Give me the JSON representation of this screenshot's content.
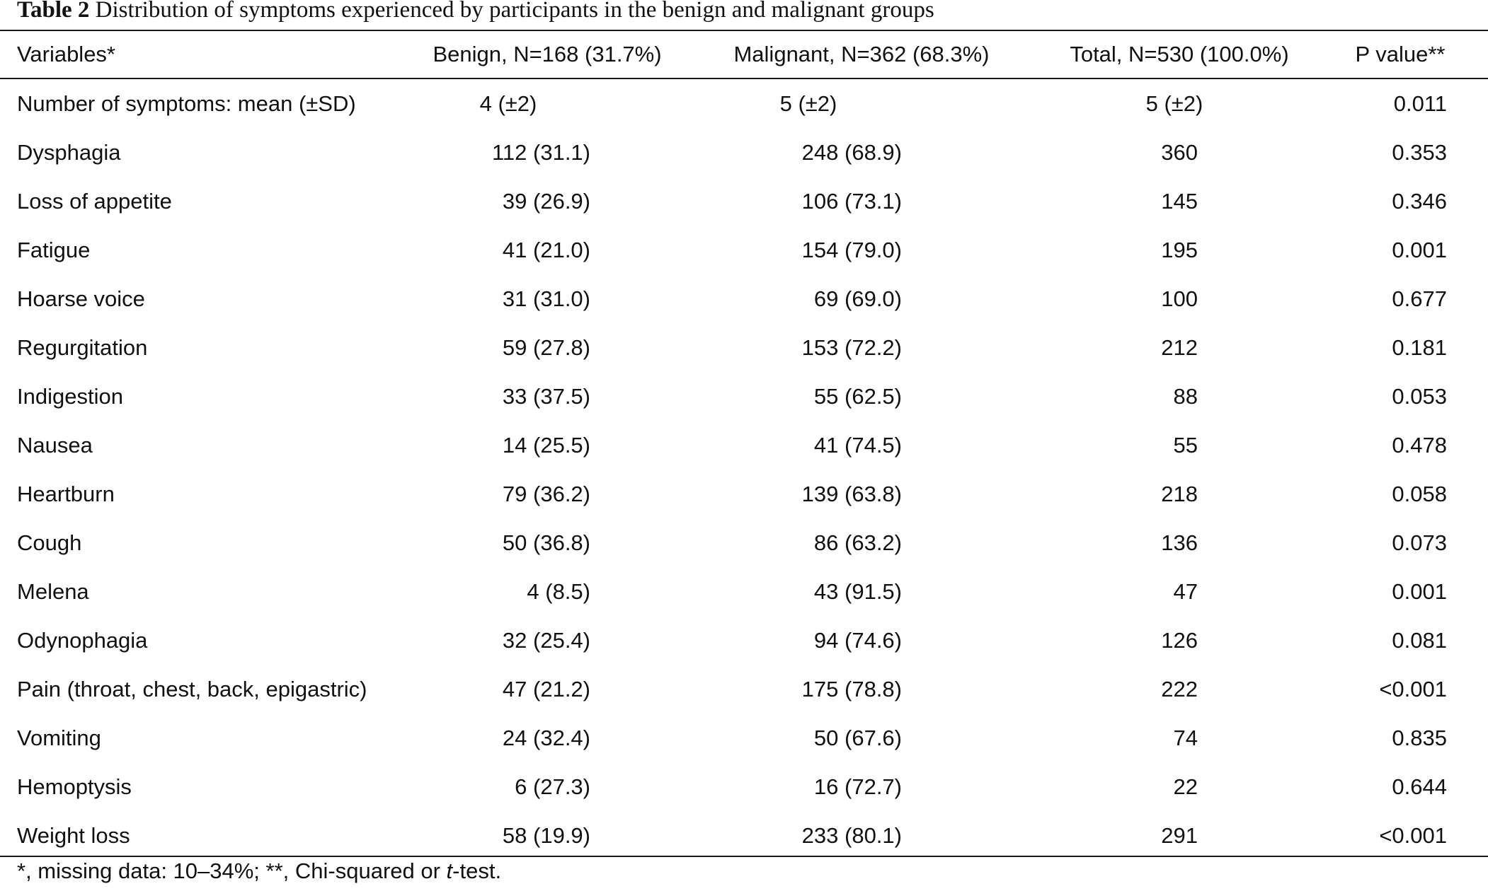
{
  "caption": {
    "label": "Table 2",
    "text": " Distribution of symptoms experienced by participants in the benign and malignant groups"
  },
  "table": {
    "headers": {
      "variable": "Variables*",
      "benign": "Benign, N=168 (31.7%)",
      "malignant": "Malignant, N=362 (68.3%)",
      "total": "Total, N=530 (100.0%)",
      "p_value": "P value**"
    },
    "rows": [
      {
        "variable": "Number of symptoms: mean (±SD)",
        "benign": "4 (±2)",
        "malignant": "5 (±2)",
        "total": "5 (±2)",
        "p_value": "0.011"
      },
      {
        "variable": "Dysphagia",
        "benign": "112 (31.1)",
        "malignant": "248 (68.9)",
        "total": "360",
        "p_value": "0.353"
      },
      {
        "variable": "Loss of appetite",
        "benign": "39 (26.9)",
        "malignant": "106 (73.1)",
        "total": "145",
        "p_value": "0.346"
      },
      {
        "variable": "Fatigue",
        "benign": "41 (21.0)",
        "malignant": "154 (79.0)",
        "total": "195",
        "p_value": "0.001"
      },
      {
        "variable": "Hoarse voice",
        "benign": "31 (31.0)",
        "malignant": "69 (69.0)",
        "total": "100",
        "p_value": "0.677"
      },
      {
        "variable": "Regurgitation",
        "benign": "59 (27.8)",
        "malignant": "153 (72.2)",
        "total": "212",
        "p_value": "0.181"
      },
      {
        "variable": "Indigestion",
        "benign": "33 (37.5)",
        "malignant": "55 (62.5)",
        "total": "88",
        "p_value": "0.053"
      },
      {
        "variable": "Nausea",
        "benign": "14 (25.5)",
        "malignant": "41 (74.5)",
        "total": "55",
        "p_value": "0.478"
      },
      {
        "variable": "Heartburn",
        "benign": "79 (36.2)",
        "malignant": "139 (63.8)",
        "total": "218",
        "p_value": "0.058"
      },
      {
        "variable": "Cough",
        "benign": "50 (36.8)",
        "malignant": "86 (63.2)",
        "total": "136",
        "p_value": "0.073"
      },
      {
        "variable": "Melena",
        "benign": "4 (8.5)",
        "malignant": "43 (91.5)",
        "total": "47",
        "p_value": "0.001"
      },
      {
        "variable": "Odynophagia",
        "benign": "32 (25.4)",
        "malignant": "94 (74.6)",
        "total": "126",
        "p_value": "0.081"
      },
      {
        "variable": "Pain (throat, chest, back, epigastric)",
        "benign": "47 (21.2)",
        "malignant": "175 (78.8)",
        "total": "222",
        "p_value": "<0.001"
      },
      {
        "variable": "Vomiting",
        "benign": "24 (32.4)",
        "malignant": "50 (67.6)",
        "total": "74",
        "p_value": "0.835"
      },
      {
        "variable": "Hemoptysis",
        "benign": "6 (27.3)",
        "malignant": "16 (72.7)",
        "total": "22",
        "p_value": "0.644"
      },
      {
        "variable": "Weight loss",
        "benign": "58 (19.9)",
        "malignant": "233 (80.1)",
        "total": "291",
        "p_value": "<0.001"
      }
    ]
  },
  "footnote": {
    "before": "*, missing data: 10–34%; **, Chi-squared or ",
    "italic": "t",
    "after": "-test."
  }
}
